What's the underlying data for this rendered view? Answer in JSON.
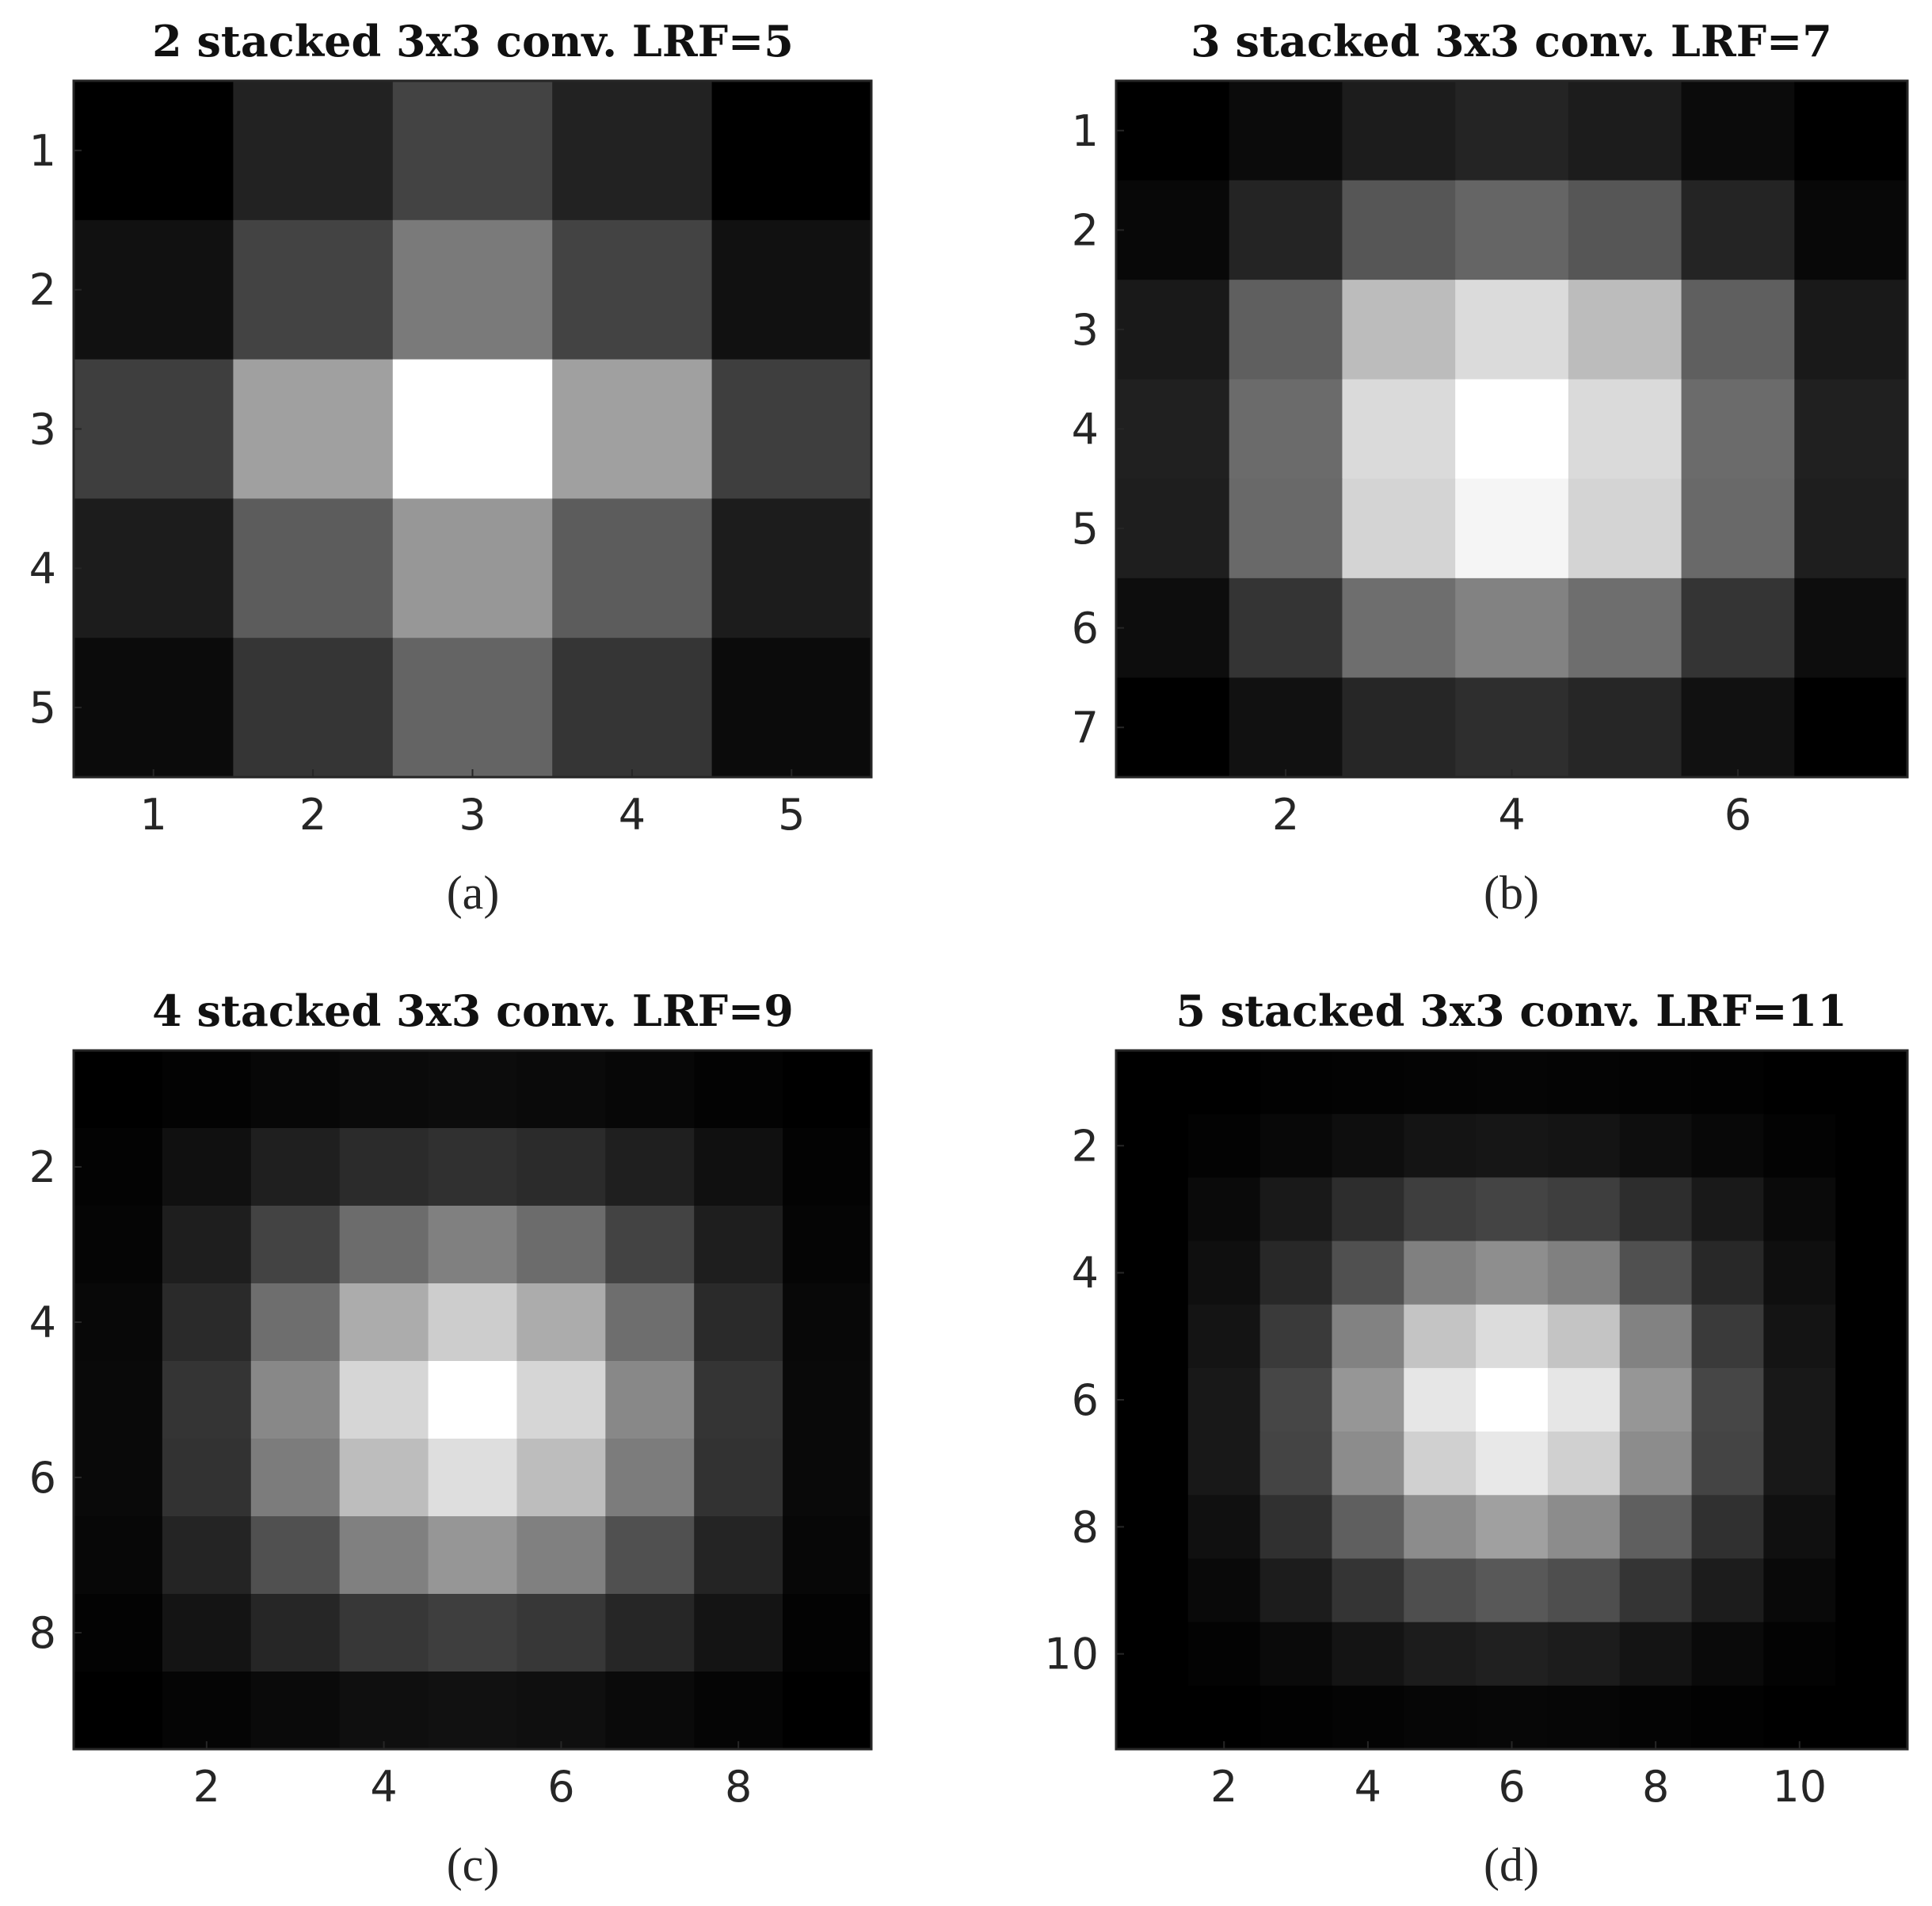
{
  "chart_data": [
    {
      "type": "heatmap",
      "title": "2 stacked 3x3 conv. LRF=5",
      "caption": "(a)",
      "colormap": "gray",
      "n": 5,
      "xticks": [
        1,
        2,
        3,
        4,
        5
      ],
      "yticks": [
        1,
        2,
        3,
        4,
        5
      ],
      "values": [
        [
          0,
          34,
          67,
          34,
          0
        ],
        [
          17,
          67,
          122,
          67,
          17
        ],
        [
          62,
          160,
          255,
          160,
          62
        ],
        [
          28,
          92,
          151,
          92,
          28
        ],
        [
          11,
          53,
          100,
          53,
          11
        ]
      ]
    },
    {
      "type": "heatmap",
      "title": "3 stacked 3x3 conv. LRF=7",
      "caption": "(b)",
      "colormap": "gray",
      "n": 7,
      "xticks": [
        2,
        4,
        6
      ],
      "yticks": [
        1,
        2,
        3,
        4,
        5,
        6,
        7
      ],
      "values": [
        [
          0,
          11,
          28,
          36,
          28,
          11,
          0
        ],
        [
          8,
          36,
          86,
          101,
          86,
          36,
          8
        ],
        [
          25,
          95,
          188,
          219,
          188,
          95,
          25
        ],
        [
          32,
          107,
          218,
          255,
          218,
          107,
          32
        ],
        [
          30,
          105,
          212,
          245,
          212,
          105,
          30
        ],
        [
          13,
          52,
          110,
          130,
          110,
          52,
          13
        ],
        [
          0,
          17,
          38,
          46,
          38,
          17,
          0
        ]
      ]
    },
    {
      "type": "heatmap",
      "title": "4 stacked 3x3 conv. LRF=9",
      "caption": "(c)",
      "colormap": "gray",
      "n": 9,
      "xticks": [
        2,
        4,
        6,
        8
      ],
      "yticks": [
        2,
        4,
        6,
        8
      ],
      "values": [
        [
          0,
          3,
          7,
          10,
          12,
          10,
          7,
          3,
          0
        ],
        [
          3,
          16,
          31,
          43,
          48,
          43,
          31,
          16,
          3
        ],
        [
          5,
          30,
          67,
          108,
          128,
          108,
          67,
          30,
          5
        ],
        [
          8,
          42,
          110,
          172,
          205,
          172,
          110,
          42,
          8
        ],
        [
          9,
          52,
          136,
          214,
          255,
          214,
          136,
          52,
          9
        ],
        [
          9,
          50,
          124,
          189,
          222,
          189,
          124,
          50,
          9
        ],
        [
          7,
          36,
          80,
          128,
          150,
          128,
          80,
          36,
          7
        ],
        [
          3,
          20,
          38,
          55,
          62,
          55,
          38,
          20,
          3
        ],
        [
          0,
          5,
          10,
          15,
          17,
          15,
          10,
          5,
          0
        ]
      ]
    },
    {
      "type": "heatmap",
      "title": "5 stacked 3x3 conv. LRF=11",
      "caption": "(d)",
      "colormap": "gray",
      "n": 11,
      "xticks": [
        2,
        4,
        6,
        8,
        10
      ],
      "yticks": [
        2,
        4,
        6,
        8,
        10
      ],
      "values": [
        [
          0,
          0,
          2,
          3,
          4,
          5,
          4,
          3,
          2,
          0,
          0
        ],
        [
          0,
          3,
          8,
          14,
          20,
          22,
          20,
          14,
          8,
          3,
          0
        ],
        [
          0,
          10,
          25,
          45,
          62,
          68,
          62,
          45,
          25,
          10,
          0
        ],
        [
          0,
          15,
          40,
          80,
          128,
          142,
          128,
          80,
          40,
          15,
          0
        ],
        [
          0,
          20,
          58,
          130,
          196,
          220,
          196,
          130,
          58,
          20,
          0
        ],
        [
          0,
          24,
          70,
          150,
          230,
          255,
          230,
          150,
          70,
          24,
          0
        ],
        [
          0,
          24,
          68,
          140,
          208,
          232,
          208,
          140,
          68,
          24,
          0
        ],
        [
          0,
          16,
          48,
          95,
          140,
          160,
          140,
          95,
          48,
          16,
          0
        ],
        [
          0,
          9,
          28,
          52,
          78,
          88,
          78,
          52,
          28,
          9,
          0
        ],
        [
          0,
          3,
          10,
          20,
          28,
          32,
          28,
          20,
          10,
          3,
          0
        ],
        [
          0,
          0,
          2,
          4,
          6,
          7,
          6,
          4,
          2,
          0,
          0
        ]
      ]
    }
  ]
}
